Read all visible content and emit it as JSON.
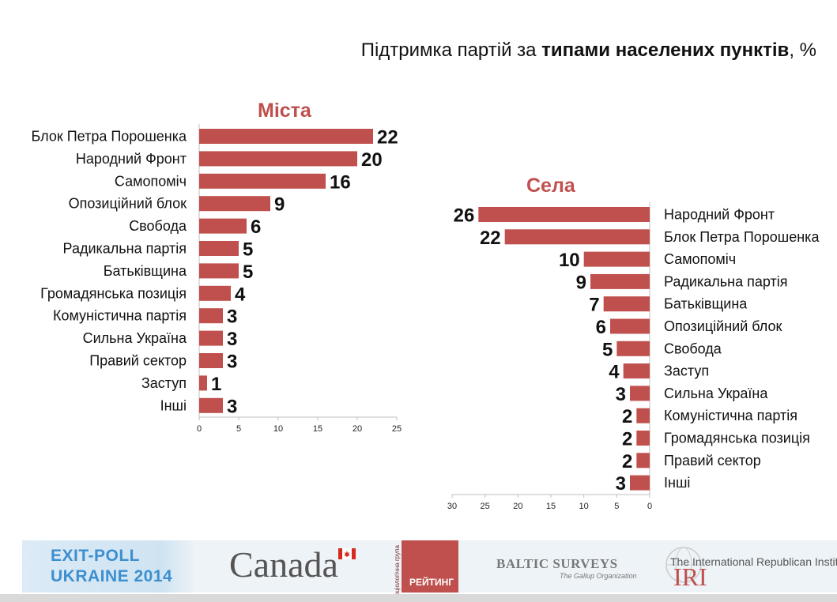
{
  "page_title": {
    "prefix": "Підтримка партій за ",
    "bold": "типами населених пунктів",
    "suffix": ", %"
  },
  "chart_data": [
    {
      "type": "bar",
      "orientation": "horizontal",
      "title": "Міста",
      "categories": [
        "Блок Петра Порошенка",
        "Народний Фронт",
        "Самопоміч",
        "Опозиційний блок",
        "Свобода",
        "Радикальна партія",
        "Батьківщина",
        "Громадянська позиція",
        "Комуністична партія",
        "Сильна Україна",
        "Правий сектор",
        "Заступ",
        "Інші"
      ],
      "values": [
        22,
        20,
        16,
        9,
        6,
        5,
        5,
        4,
        3,
        3,
        3,
        1,
        3
      ],
      "xlim": [
        0,
        25
      ],
      "ticks": [
        0,
        5,
        10,
        15,
        20,
        25
      ],
      "bar_color": "#c0504d",
      "direction": "left-to-right"
    },
    {
      "type": "bar",
      "orientation": "horizontal",
      "title": "Села",
      "categories": [
        "Народний Фронт",
        "Блок Петра Порошенка",
        "Самопоміч",
        "Радикальна партія",
        "Батьківщина",
        "Опозиційний блок",
        "Свобода",
        "Заступ",
        "Сильна Україна",
        "Комуністична партія",
        "Громадянська позиція",
        "Правий сектор",
        "Інші"
      ],
      "values": [
        26,
        22,
        10,
        9,
        7,
        6,
        5,
        4,
        3,
        2,
        2,
        2,
        3
      ],
      "xlim": [
        0,
        30
      ],
      "ticks": [
        30,
        25,
        20,
        15,
        10,
        5,
        0
      ],
      "bar_color": "#c0504d",
      "direction": "right-to-left"
    }
  ],
  "footer": {
    "exitpoll_line1": "EXIT-POLL",
    "exitpoll_line2": "UKRAINE 2014",
    "canada": "Canada",
    "reiting_vertical": "соціологічна група",
    "reiting": "РЕЙТИНГ",
    "baltic": "BALTIC SURVEYS",
    "gallup": "The Gallup Organization",
    "iri_name": "The International Republican Institute",
    "iri_abbr": "IRI"
  }
}
